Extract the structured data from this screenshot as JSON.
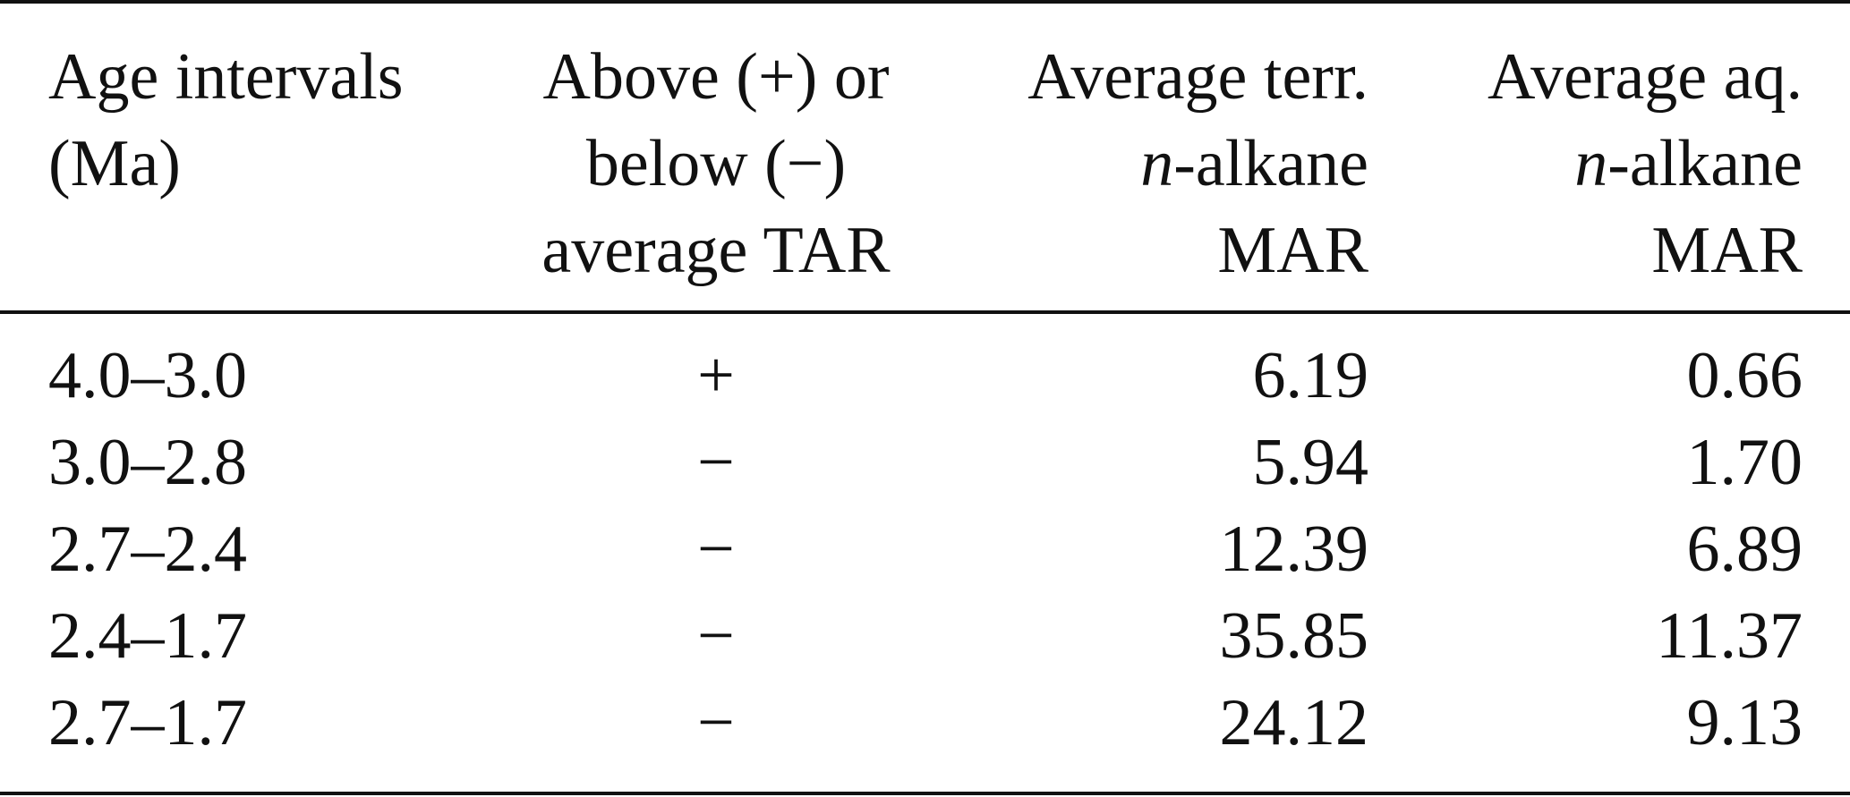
{
  "table": {
    "headers": {
      "age": [
        "Age intervals",
        "(Ma)"
      ],
      "tar": [
        "Above (+) or",
        "below (−)",
        "average TAR"
      ],
      "terr": {
        "line1": "Average terr.",
        "line2_italic": "n",
        "line2_rest": "-alkane",
        "line3": "MAR"
      },
      "aq": {
        "line1": "Average aq.",
        "line2_italic": "n",
        "line2_rest": "-alkane",
        "line3": "MAR"
      }
    },
    "rows": [
      {
        "age": "4.0–3.0",
        "tar": "+",
        "terr": "6.19",
        "aq": "0.66"
      },
      {
        "age": "3.0–2.8",
        "tar": "−",
        "terr": "5.94",
        "aq": "1.70"
      },
      {
        "age": "2.7–2.4",
        "tar": "−",
        "terr": "12.39",
        "aq": "6.89"
      },
      {
        "age": "2.4–1.7",
        "tar": "−",
        "terr": "35.85",
        "aq": "11.37"
      },
      {
        "age": "2.7–1.7",
        "tar": "−",
        "terr": "24.12",
        "aq": "9.13"
      }
    ]
  }
}
